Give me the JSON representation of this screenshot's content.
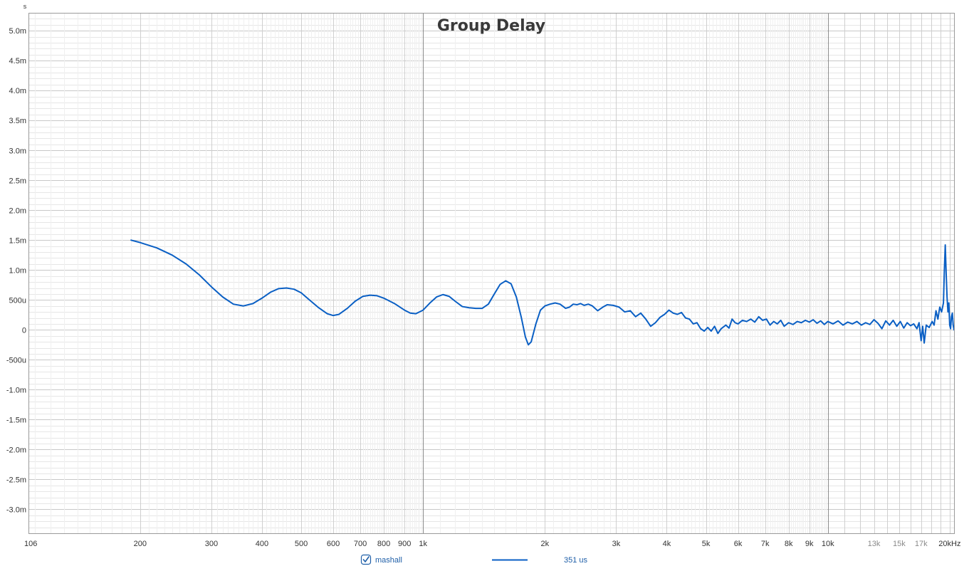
{
  "chart_data": {
    "type": "line",
    "title": "Group Delay",
    "ylabel": "s",
    "xlabel": "",
    "x_scale": "log",
    "xlim": [
      106,
      20500
    ],
    "ylim": [
      -3.4,
      5.3
    ],
    "grid": true,
    "x_ticks": [
      {
        "value": 106,
        "label": "106"
      },
      {
        "value": 200,
        "label": "200"
      },
      {
        "value": 300,
        "label": "300"
      },
      {
        "value": 400,
        "label": "400"
      },
      {
        "value": 500,
        "label": "500"
      },
      {
        "value": 600,
        "label": "600"
      },
      {
        "value": 700,
        "label": "700"
      },
      {
        "value": 800,
        "label": "800"
      },
      {
        "value": 900,
        "label": "900"
      },
      {
        "value": 1000,
        "label": "1k"
      },
      {
        "value": 2000,
        "label": "2k"
      },
      {
        "value": 3000,
        "label": "3k"
      },
      {
        "value": 4000,
        "label": "4k"
      },
      {
        "value": 5000,
        "label": "5k"
      },
      {
        "value": 6000,
        "label": "6k"
      },
      {
        "value": 7000,
        "label": "7k"
      },
      {
        "value": 8000,
        "label": "8k"
      },
      {
        "value": 9000,
        "label": "9k"
      },
      {
        "value": 10000,
        "label": "10k"
      },
      {
        "value": 13000,
        "label": "13k",
        "dim": true
      },
      {
        "value": 15000,
        "label": "15k",
        "dim": true
      },
      {
        "value": 17000,
        "label": "17k",
        "dim": true
      },
      {
        "value": 20000,
        "label": "20kHz"
      }
    ],
    "y_ticks": [
      {
        "value": 5.0,
        "label": "5.0m"
      },
      {
        "value": 4.5,
        "label": "4.5m"
      },
      {
        "value": 4.0,
        "label": "4.0m"
      },
      {
        "value": 3.5,
        "label": "3.5m"
      },
      {
        "value": 3.0,
        "label": "3.0m"
      },
      {
        "value": 2.5,
        "label": "2.5m"
      },
      {
        "value": 2.0,
        "label": "2.0m"
      },
      {
        "value": 1.5,
        "label": "1.5m"
      },
      {
        "value": 1.0,
        "label": "1.0m"
      },
      {
        "value": 0.5,
        "label": "500u"
      },
      {
        "value": 0.0,
        "label": "0"
      },
      {
        "value": -0.5,
        "label": "-500u"
      },
      {
        "value": -1.0,
        "label": "-1.0m"
      },
      {
        "value": -1.5,
        "label": "-1.5m"
      },
      {
        "value": -2.0,
        "label": "-2.0m"
      },
      {
        "value": -2.5,
        "label": "-2.5m"
      },
      {
        "value": -3.0,
        "label": "-3.0m"
      }
    ],
    "series": [
      {
        "name": "mashall",
        "color": "#0a5fc4",
        "points": [
          [
            190,
            1.5
          ],
          [
            200,
            1.46
          ],
          [
            220,
            1.37
          ],
          [
            240,
            1.25
          ],
          [
            260,
            1.1
          ],
          [
            280,
            0.92
          ],
          [
            300,
            0.72
          ],
          [
            320,
            0.55
          ],
          [
            340,
            0.43
          ],
          [
            360,
            0.4
          ],
          [
            380,
            0.44
          ],
          [
            400,
            0.53
          ],
          [
            420,
            0.63
          ],
          [
            440,
            0.69
          ],
          [
            460,
            0.7
          ],
          [
            480,
            0.68
          ],
          [
            500,
            0.62
          ],
          [
            520,
            0.52
          ],
          [
            550,
            0.38
          ],
          [
            580,
            0.27
          ],
          [
            600,
            0.24
          ],
          [
            620,
            0.26
          ],
          [
            650,
            0.36
          ],
          [
            680,
            0.48
          ],
          [
            710,
            0.56
          ],
          [
            740,
            0.58
          ],
          [
            770,
            0.57
          ],
          [
            800,
            0.53
          ],
          [
            850,
            0.44
          ],
          [
            900,
            0.33
          ],
          [
            930,
            0.28
          ],
          [
            960,
            0.27
          ],
          [
            1000,
            0.33
          ],
          [
            1040,
            0.45
          ],
          [
            1080,
            0.55
          ],
          [
            1120,
            0.59
          ],
          [
            1160,
            0.56
          ],
          [
            1200,
            0.48
          ],
          [
            1250,
            0.39
          ],
          [
            1300,
            0.37
          ],
          [
            1350,
            0.36
          ],
          [
            1400,
            0.36
          ],
          [
            1450,
            0.43
          ],
          [
            1500,
            0.6
          ],
          [
            1550,
            0.76
          ],
          [
            1600,
            0.82
          ],
          [
            1650,
            0.77
          ],
          [
            1700,
            0.55
          ],
          [
            1750,
            0.2
          ],
          [
            1790,
            -0.12
          ],
          [
            1820,
            -0.25
          ],
          [
            1850,
            -0.2
          ],
          [
            1900,
            0.1
          ],
          [
            1950,
            0.33
          ],
          [
            2000,
            0.4
          ],
          [
            2060,
            0.43
          ],
          [
            2120,
            0.45
          ],
          [
            2180,
            0.43
          ],
          [
            2250,
            0.36
          ],
          [
            2300,
            0.38
          ],
          [
            2350,
            0.43
          ],
          [
            2400,
            0.42
          ],
          [
            2450,
            0.44
          ],
          [
            2500,
            0.41
          ],
          [
            2560,
            0.43
          ],
          [
            2620,
            0.4
          ],
          [
            2700,
            0.32
          ],
          [
            2780,
            0.38
          ],
          [
            2850,
            0.42
          ],
          [
            2950,
            0.41
          ],
          [
            3050,
            0.38
          ],
          [
            3150,
            0.3
          ],
          [
            3250,
            0.32
          ],
          [
            3350,
            0.22
          ],
          [
            3450,
            0.28
          ],
          [
            3550,
            0.18
          ],
          [
            3650,
            0.06
          ],
          [
            3750,
            0.12
          ],
          [
            3850,
            0.21
          ],
          [
            3950,
            0.26
          ],
          [
            4050,
            0.33
          ],
          [
            4150,
            0.28
          ],
          [
            4250,
            0.26
          ],
          [
            4350,
            0.29
          ],
          [
            4450,
            0.2
          ],
          [
            4550,
            0.18
          ],
          [
            4650,
            0.1
          ],
          [
            4750,
            0.12
          ],
          [
            4850,
            0.02
          ],
          [
            4950,
            -0.02
          ],
          [
            5050,
            0.04
          ],
          [
            5150,
            -0.02
          ],
          [
            5250,
            0.06
          ],
          [
            5350,
            -0.06
          ],
          [
            5450,
            0.02
          ],
          [
            5600,
            0.08
          ],
          [
            5700,
            0.03
          ],
          [
            5800,
            0.18
          ],
          [
            5900,
            0.12
          ],
          [
            6000,
            0.1
          ],
          [
            6150,
            0.16
          ],
          [
            6300,
            0.14
          ],
          [
            6450,
            0.18
          ],
          [
            6600,
            0.13
          ],
          [
            6750,
            0.22
          ],
          [
            6900,
            0.16
          ],
          [
            7050,
            0.18
          ],
          [
            7200,
            0.08
          ],
          [
            7350,
            0.14
          ],
          [
            7500,
            0.1
          ],
          [
            7650,
            0.16
          ],
          [
            7800,
            0.06
          ],
          [
            8000,
            0.12
          ],
          [
            8200,
            0.09
          ],
          [
            8400,
            0.14
          ],
          [
            8600,
            0.12
          ],
          [
            8800,
            0.16
          ],
          [
            9000,
            0.13
          ],
          [
            9200,
            0.17
          ],
          [
            9400,
            0.11
          ],
          [
            9600,
            0.15
          ],
          [
            9800,
            0.09
          ],
          [
            10000,
            0.14
          ],
          [
            10300,
            0.1
          ],
          [
            10600,
            0.15
          ],
          [
            10900,
            0.08
          ],
          [
            11200,
            0.13
          ],
          [
            11500,
            0.1
          ],
          [
            11800,
            0.14
          ],
          [
            12100,
            0.08
          ],
          [
            12400,
            0.12
          ],
          [
            12700,
            0.09
          ],
          [
            13000,
            0.17
          ],
          [
            13300,
            0.11
          ],
          [
            13600,
            0.02
          ],
          [
            13900,
            0.15
          ],
          [
            14200,
            0.08
          ],
          [
            14500,
            0.16
          ],
          [
            14800,
            0.06
          ],
          [
            15100,
            0.14
          ],
          [
            15400,
            0.03
          ],
          [
            15700,
            0.12
          ],
          [
            16000,
            0.07
          ],
          [
            16300,
            0.1
          ],
          [
            16600,
            0.02
          ],
          [
            16800,
            0.12
          ],
          [
            17000,
            -0.18
          ],
          [
            17150,
            0.06
          ],
          [
            17300,
            -0.22
          ],
          [
            17500,
            0.08
          ],
          [
            17800,
            0.04
          ],
          [
            18100,
            0.14
          ],
          [
            18300,
            0.08
          ],
          [
            18500,
            0.32
          ],
          [
            18700,
            0.18
          ],
          [
            18900,
            0.38
          ],
          [
            19100,
            0.3
          ],
          [
            19300,
            0.45
          ],
          [
            19400,
            1.0
          ],
          [
            19500,
            1.42
          ],
          [
            19600,
            0.95
          ],
          [
            19700,
            0.55
          ],
          [
            19800,
            0.3
          ],
          [
            19900,
            0.45
          ],
          [
            20000,
            0.08
          ],
          [
            20100,
            0.02
          ],
          [
            20200,
            0.22
          ],
          [
            20300,
            0.28
          ],
          [
            20400,
            0.08
          ],
          [
            20500,
            0.0
          ]
        ]
      }
    ],
    "legend": {
      "placement": "bottom-center",
      "label": "mashall",
      "checked": true,
      "value_text": "351 us"
    }
  }
}
